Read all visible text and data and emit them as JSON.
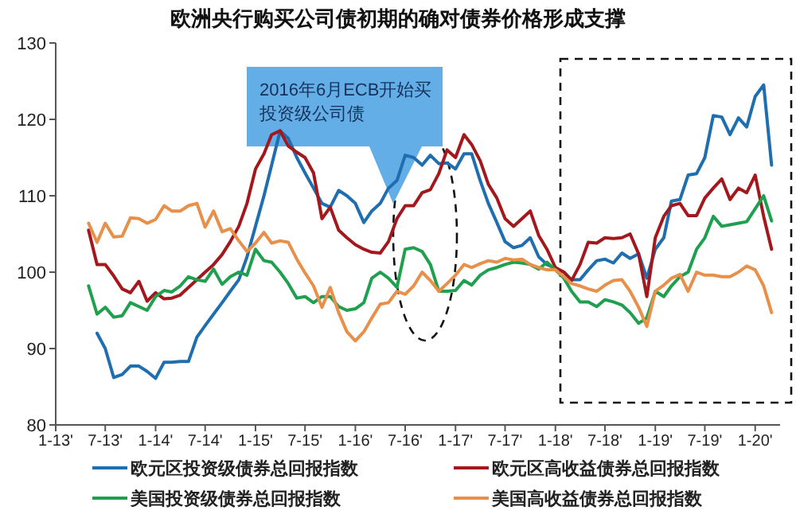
{
  "chart_data": {
    "type": "line",
    "title": "欧洲央行购买公司债初期的确对债券价格形成支撑",
    "annotations": [
      "2016年6月ECB开始买投资级公司债"
    ],
    "x": [
      "2013-05",
      "2013-06",
      "2013-07",
      "2013-08",
      "2013-09",
      "2013-10",
      "2013-11",
      "2013-12",
      "2014-01",
      "2014-02",
      "2014-03",
      "2014-04",
      "2014-05",
      "2014-06",
      "2014-07",
      "2014-08",
      "2014-09",
      "2014-10",
      "2014-11",
      "2014-12",
      "2015-01",
      "2015-02",
      "2015-03",
      "2015-04",
      "2015-05",
      "2015-06",
      "2015-07",
      "2015-08",
      "2015-09",
      "2015-10",
      "2015-11",
      "2015-12",
      "2016-01",
      "2016-02",
      "2016-03",
      "2016-04",
      "2016-05",
      "2016-06",
      "2016-07",
      "2016-08",
      "2016-09",
      "2016-10",
      "2016-11",
      "2016-12",
      "2017-01",
      "2017-02",
      "2017-03",
      "2017-04",
      "2017-05",
      "2017-06",
      "2017-07",
      "2017-08",
      "2017-09",
      "2017-10",
      "2017-11",
      "2017-12",
      "2018-01",
      "2018-02",
      "2018-03",
      "2018-04",
      "2018-05",
      "2018-06",
      "2018-07",
      "2018-08",
      "2018-09",
      "2018-10",
      "2018-11",
      "2018-12",
      "2019-01",
      "2019-02",
      "2019-03",
      "2019-04",
      "2019-05",
      "2019-06",
      "2019-07",
      "2019-08",
      "2019-09",
      "2019-10",
      "2019-11",
      "2019-12",
      "2020-01",
      "2020-02",
      "2020-03"
    ],
    "series": [
      {
        "name": "欧元区投资级债券总回报指数",
        "color": "#1f6eb0",
        "values": [
          null,
          92,
          90,
          86.2,
          86.6,
          87.7,
          87.7,
          87,
          86.1,
          88.2,
          88.2,
          88.3,
          88.3,
          91.5,
          93,
          94.5,
          96,
          97.5,
          99,
          102,
          106,
          110,
          114,
          118.5,
          117.5,
          115,
          113,
          111,
          109,
          108.5,
          110.7,
          110,
          109,
          106.5,
          108,
          109,
          111,
          112,
          115.3,
          115,
          114,
          115.3,
          114.2,
          114.3,
          113.5,
          115.5,
          115.5,
          112,
          109,
          106.5,
          104,
          103.2,
          103.5,
          104.5,
          102,
          101,
          100.5,
          100,
          99,
          99,
          100.3,
          101.5,
          101.7,
          101.2,
          102.5,
          101.8,
          102.4,
          99.2,
          103,
          104.5,
          109.3,
          109.5,
          112.7,
          112.9,
          115,
          120.5,
          120.3,
          118,
          120.2,
          119,
          123,
          124.5,
          114
        ]
      },
      {
        "name": "欧元区高收益债券总回报指数",
        "color": "#a3181c",
        "values": [
          105.5,
          101,
          101,
          99.5,
          97.8,
          97.3,
          98.8,
          96.2,
          97.3,
          96.5,
          96.6,
          97,
          98,
          99,
          100,
          101,
          102.3,
          104,
          106,
          109,
          113.5,
          115.5,
          118,
          118.5,
          116.5,
          115.7,
          115,
          113,
          107,
          108.5,
          105.5,
          104.5,
          103.6,
          103,
          102.6,
          102.5,
          104,
          107,
          108.7,
          108.7,
          110.4,
          110.8,
          112.9,
          116,
          115,
          118,
          116.7,
          114.6,
          111.5,
          109.7,
          107,
          106,
          107,
          108,
          104.8,
          103,
          100.6,
          100,
          98.9,
          101,
          103.9,
          103.8,
          104.5,
          104.4,
          104.5,
          105,
          102.4,
          96.8,
          104.5,
          107.3,
          108.7,
          109,
          107.4,
          107.4,
          109.7,
          111,
          112.2,
          109.5,
          111,
          110.4,
          112.7,
          107.3,
          103
        ]
      },
      {
        "name": "美国投资级债券总回报指数",
        "color": "#1fa04e",
        "values": [
          98.2,
          94.5,
          95.4,
          94.1,
          94.3,
          96,
          95.5,
          95,
          96.8,
          97.6,
          97.4,
          98.2,
          99.4,
          99,
          98.8,
          100.4,
          98.4,
          99.4,
          100,
          99.6,
          103,
          101.5,
          101.3,
          100,
          98.5,
          96.6,
          96.8,
          96,
          96.8,
          96.8,
          95.5,
          95,
          95.2,
          96,
          99.2,
          100,
          99.2,
          98,
          103,
          103.2,
          102.7,
          101,
          97.5,
          97.5,
          97.6,
          98.9,
          98.3,
          99.6,
          100.3,
          100.6,
          101,
          101.3,
          101.2,
          101,
          100.4,
          101.3,
          100.3,
          99.2,
          97.5,
          96.1,
          96.1,
          95.5,
          96.4,
          96.1,
          95.7,
          94.7,
          93.3,
          94,
          97.5,
          96.8,
          98.2,
          99.4,
          100,
          103,
          104.5,
          107.3,
          106,
          106.2,
          106.4,
          106.6,
          108.3,
          110,
          106.7
        ]
      },
      {
        "name": "美国高收益债券总回报指数",
        "color": "#e8904a",
        "values": [
          106.4,
          103.9,
          106.4,
          104.6,
          104.7,
          107.1,
          107,
          106.4,
          106.9,
          108.7,
          108,
          108,
          108.7,
          109,
          105.9,
          108,
          105.3,
          105.7,
          104.1,
          102.7,
          103.8,
          105.2,
          103.8,
          104.1,
          103.9,
          101.7,
          99.9,
          98.2,
          95.4,
          98,
          94.7,
          92.2,
          91,
          92.2,
          94,
          95.8,
          96,
          97.5,
          97.1,
          98.2,
          100,
          98.9,
          97.5,
          98.5,
          99.6,
          101,
          100.6,
          101.1,
          101.5,
          101.3,
          101.8,
          101.6,
          101.7,
          101,
          100.6,
          100.3,
          100.3,
          99.4,
          98.5,
          98.2,
          97.8,
          97.5,
          98.3,
          98.9,
          99,
          97.5,
          95.4,
          92.9,
          97.5,
          98.3,
          99.2,
          99.7,
          97.5,
          100,
          99.6,
          99.6,
          99.4,
          99.4,
          100,
          100.8,
          100.3,
          98.2,
          94.7
        ]
      }
    ],
    "xlim": [
      "2013-01",
      "2020-04"
    ],
    "xticks": [
      {
        "value": "2013-01",
        "label": "1-13'"
      },
      {
        "value": "2013-07",
        "label": "7-13'"
      },
      {
        "value": "2014-01",
        "label": "1-14'"
      },
      {
        "value": "2014-07",
        "label": "7-14'"
      },
      {
        "value": "2015-01",
        "label": "1-15'"
      },
      {
        "value": "2015-07",
        "label": "7-15'"
      },
      {
        "value": "2016-01",
        "label": "1-16'"
      },
      {
        "value": "2016-07",
        "label": "7-16'"
      },
      {
        "value": "2017-01",
        "label": "1-17'"
      },
      {
        "value": "2017-07",
        "label": "7-17'"
      },
      {
        "value": "2018-01",
        "label": "1-18'"
      },
      {
        "value": "2018-07",
        "label": "7-18'"
      },
      {
        "value": "2019-01",
        "label": "1-19'"
      },
      {
        "value": "2019-07",
        "label": "7-19'"
      },
      {
        "value": "2020-01",
        "label": "1-20'"
      }
    ],
    "ylim": [
      80,
      130
    ],
    "yticks": [
      80,
      90,
      100,
      110,
      120,
      130
    ],
    "legend": "bottom",
    "marker": "none",
    "line_style": "solid"
  }
}
